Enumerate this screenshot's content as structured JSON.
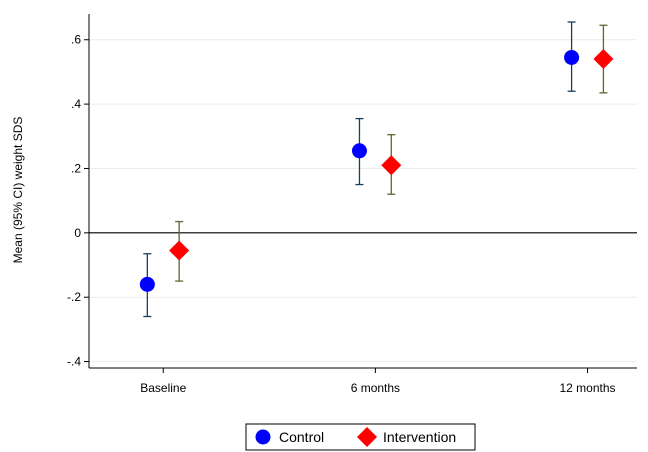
{
  "chart_data": {
    "type": "scatter",
    "subtype": "point-with-error-bars",
    "title": "",
    "xlabel": "",
    "ylabel": "Mean (95% CI) weight SDS",
    "categories": [
      "Baseline",
      "6 months",
      "12 months"
    ],
    "x_positions": [
      0,
      6,
      12
    ],
    "ylim": [
      -0.42,
      0.68
    ],
    "yticks": [
      -0.4,
      -0.2,
      0,
      0.2,
      0.4,
      0.6
    ],
    "ytick_labels": [
      "-.4",
      "-.2",
      "0",
      ".2",
      ".4",
      ".6"
    ],
    "grid": true,
    "reference_line": 0,
    "legend_position": "bottom",
    "series": [
      {
        "name": "Control",
        "marker": "circle",
        "color": "#0000ff",
        "errorbar_color": "#1a3f5c",
        "values": [
          -0.16,
          0.255,
          0.545
        ],
        "ci_low": [
          -0.26,
          0.15,
          0.44
        ],
        "ci_high": [
          -0.065,
          0.355,
          0.655
        ]
      },
      {
        "name": "Intervention",
        "marker": "diamond",
        "color": "#ff0000",
        "errorbar_color": "#556b2f",
        "values": [
          -0.055,
          0.21,
          0.54
        ],
        "ci_low": [
          -0.15,
          0.12,
          0.435
        ],
        "ci_high": [
          0.035,
          0.305,
          0.645
        ]
      }
    ]
  }
}
